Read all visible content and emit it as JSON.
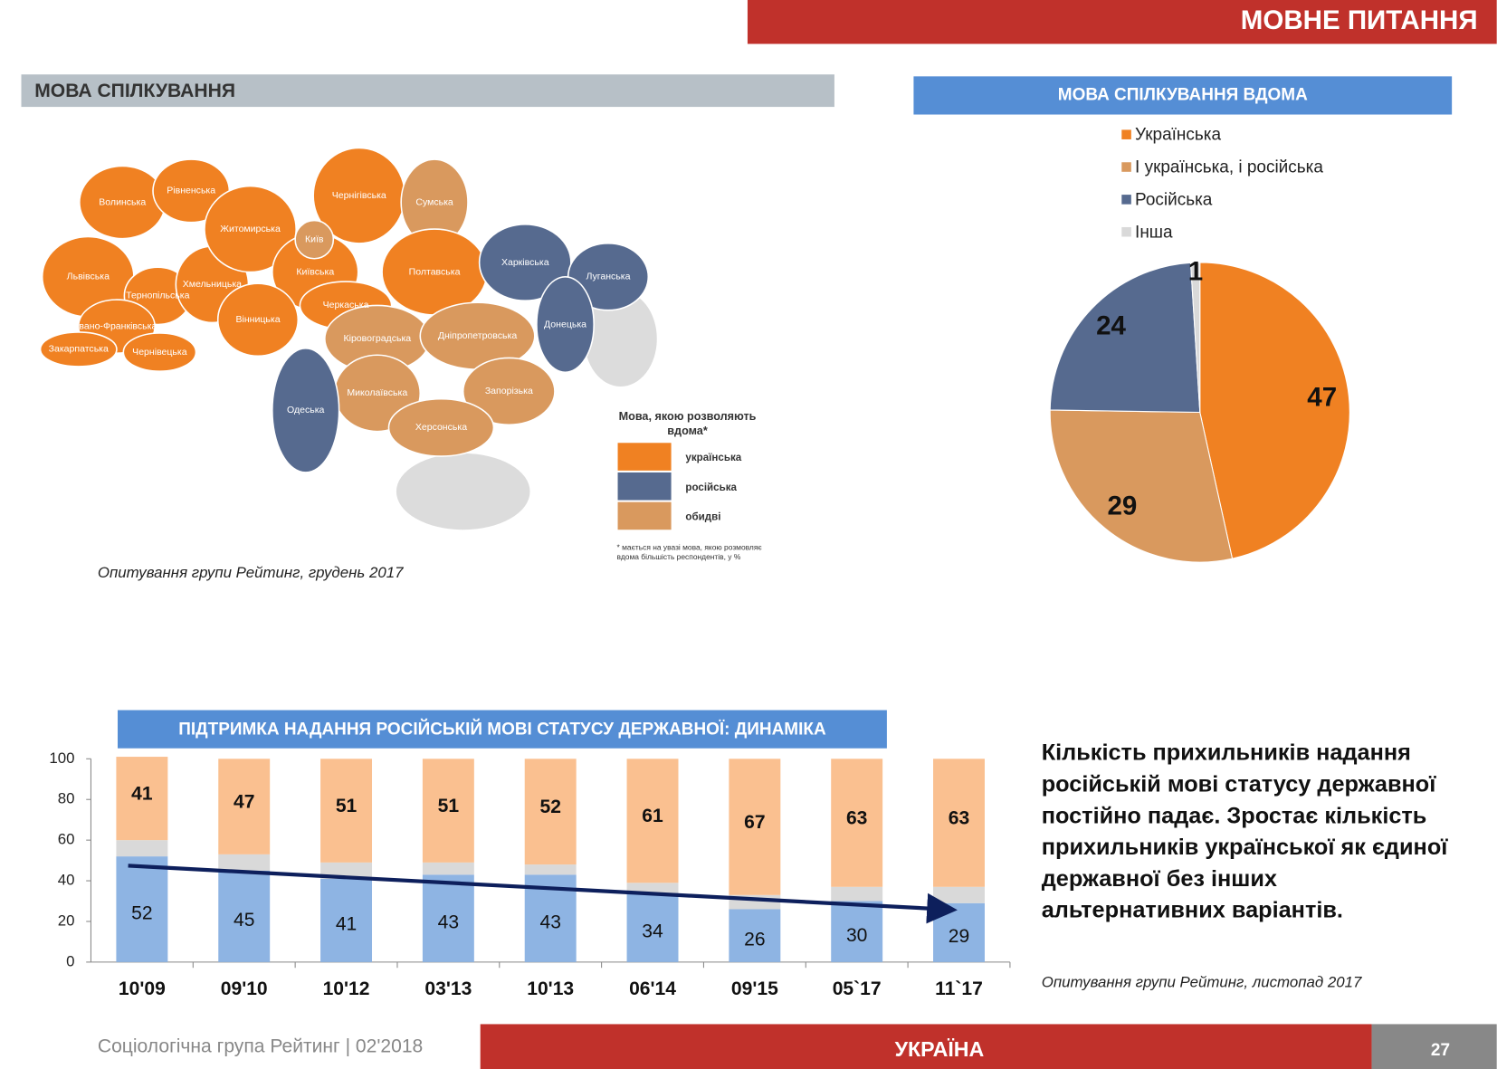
{
  "header": {
    "title": "МОВНЕ ПИТАННЯ"
  },
  "map": {
    "title": "МОВА СПІЛКУВАННЯ",
    "legend_title": [
      "Мова, якою розволяють",
      "вдома*"
    ],
    "legend": [
      {
        "label": "українська",
        "color": "#f08122"
      },
      {
        "label": "російська",
        "color": "#566a8f"
      },
      {
        "label": "обидві",
        "color": "#d9995e"
      }
    ],
    "regions": [
      {
        "name": "Волинська",
        "group": 0
      },
      {
        "name": "Рівненська",
        "group": 0
      },
      {
        "name": "Львівська",
        "group": 0
      },
      {
        "name": "Тернопільська",
        "group": 0
      },
      {
        "name": "Хмельницька",
        "group": 0
      },
      {
        "name": "Житомирська",
        "group": 0
      },
      {
        "name": "Київська",
        "group": 0
      },
      {
        "name": "Чернігівська",
        "group": 0
      },
      {
        "name": "Сумська",
        "group": 2
      },
      {
        "name": "Полтавська",
        "group": 0
      },
      {
        "name": "Харківська",
        "group": 1
      },
      {
        "name": "Луганська",
        "group": 1
      },
      {
        "name": "Донецька",
        "group": 1
      },
      {
        "name": "Черкаська",
        "group": 0
      },
      {
        "name": "Вінницька",
        "group": 0
      },
      {
        "name": "Івано-Франківська",
        "group": 0
      },
      {
        "name": "Закарпатська",
        "group": 0
      },
      {
        "name": "Чернівецька",
        "group": 0
      },
      {
        "name": "Кіровоградська",
        "group": 2
      },
      {
        "name": "Дніпропетровська",
        "group": 2
      },
      {
        "name": "Запорізька",
        "group": 2
      },
      {
        "name": "Миколаївська",
        "group": 2
      },
      {
        "name": "Херсонська",
        "group": 2
      },
      {
        "name": "Одеська",
        "group": 1
      },
      {
        "name": "Київ",
        "group": 2
      }
    ],
    "footnote": [
      "* мається на увазі мова, якою розмовляє",
      "вдома більшість респондентів, у %"
    ],
    "source": "Опитування групи Рейтинг, грудень 2017"
  },
  "chart_data": [
    {
      "type": "pie",
      "title": "МОВА СПІЛКУВАННЯ ВДОМА",
      "categories": [
        "Українська",
        "І українська, і російська",
        "Російська",
        "Інша"
      ],
      "values": [
        47,
        29,
        24,
        1
      ],
      "colors": [
        "#f08122",
        "#d9995e",
        "#566a8f",
        "#d9d9d9"
      ],
      "legend": "top-right"
    },
    {
      "type": "bar",
      "stacked": true,
      "title": "ПІДТРИМКА НАДАННЯ РОСІЙСЬКІЙ МОВІ СТАТУСУ ДЕРЖАВНОЇ: ДИНАМІКА",
      "categories": [
        "10'09",
        "09'10",
        "10'12",
        "03'13",
        "10'13",
        "06'14",
        "09'15",
        "05`17",
        "11`17"
      ],
      "series": [
        {
          "color": "#8eb4e3",
          "values": [
            52,
            45,
            41,
            43,
            43,
            34,
            26,
            30,
            29
          ]
        },
        {
          "color": "#d9d9d9",
          "values": [
            8,
            8,
            8,
            6,
            5,
            5,
            7,
            7,
            8
          ]
        },
        {
          "color": "#fac090",
          "values": [
            41,
            47,
            51,
            51,
            52,
            61,
            67,
            63,
            63
          ]
        }
      ],
      "ylim": [
        0,
        100
      ],
      "yticks": [
        0,
        20,
        40,
        60,
        80,
        100
      ]
    }
  ],
  "text": {
    "lines": [
      "Кількість прихильників надання",
      "російській мові статусу державної",
      "постійно падає. Зростає кількість",
      "прихильників української як єдиної",
      "державної без інших",
      "альтернативних варіантів."
    ],
    "source": "Опитування групи Рейтинг, листопад 2017"
  },
  "footer": {
    "left": "Соціологічна група Рейтинг  |  02'2018",
    "center": "УКРАЇНА",
    "page": 27
  }
}
